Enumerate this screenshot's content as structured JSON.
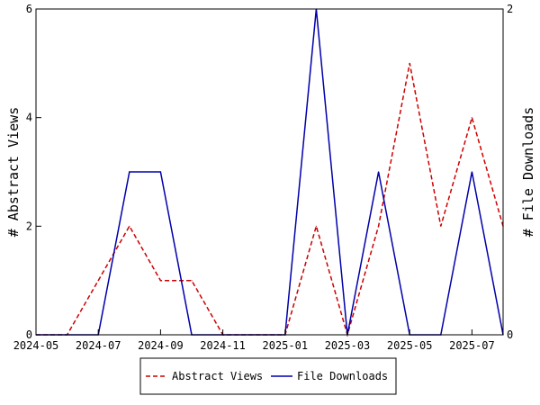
{
  "chart_data": {
    "type": "line",
    "title": "",
    "x_ticks": [
      "2024-05",
      "2024-07",
      "2024-09",
      "2024-11",
      "2025-01",
      "2025-03",
      "2025-05",
      "2025-07"
    ],
    "x": [
      "2024-05",
      "2024-06",
      "2024-07",
      "2024-08",
      "2024-09",
      "2024-10",
      "2024-11",
      "2024-12",
      "2025-01",
      "2025-02",
      "2025-03",
      "2025-04",
      "2025-05",
      "2025-06",
      "2025-07",
      "2025-08"
    ],
    "series": [
      {
        "name": "Abstract Views",
        "axis": "left",
        "color": "#cc0000",
        "style": "dashed",
        "values": [
          0,
          0,
          1,
          2,
          1,
          1,
          0,
          0,
          0,
          2,
          0,
          2,
          5,
          2,
          4,
          2
        ]
      },
      {
        "name": "File Downloads",
        "axis": "right",
        "color": "#0000aa",
        "style": "solid",
        "values": [
          0,
          0,
          0,
          1,
          1,
          0,
          0,
          0,
          0,
          2,
          0,
          1,
          0,
          0,
          1,
          0
        ]
      }
    ],
    "y_left": {
      "label": "# Abstract Views",
      "lim": [
        0,
        6
      ],
      "ticks": [
        "0",
        "2",
        "4",
        "6"
      ]
    },
    "y_right": {
      "label": "# File Downloads",
      "lim": [
        0,
        2
      ],
      "ticks": [
        "0",
        "2"
      ]
    },
    "grid": false,
    "legend_position": "bottom-center"
  }
}
